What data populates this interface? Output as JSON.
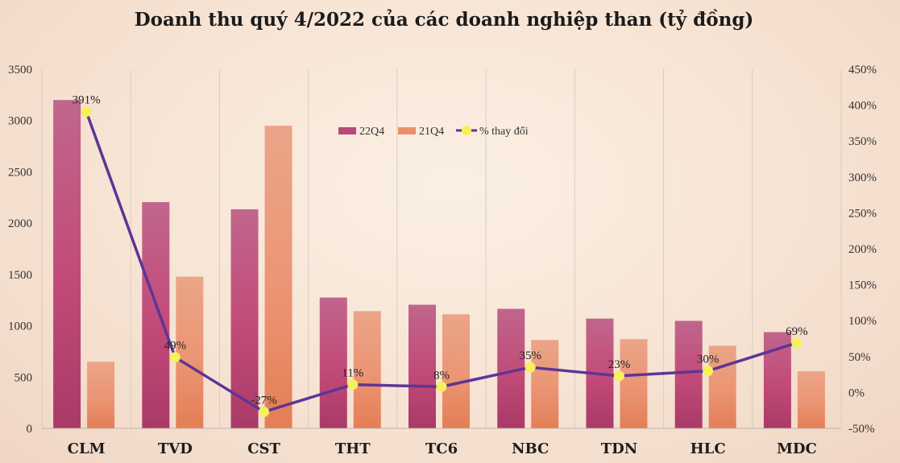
{
  "chart_data": {
    "type": "bar",
    "title": "Doanh thu quý 4/2022 của các doanh nghiệp than (tỷ đồng)",
    "categories": [
      "CLM",
      "TVD",
      "CST",
      "THT",
      "TC6",
      "NBC",
      "TDN",
      "HLC",
      "MDC"
    ],
    "series": [
      {
        "name": "22Q4",
        "type": "bar",
        "axis": "left",
        "color": "#b84a78",
        "values": [
          3200,
          2205,
          2135,
          1275,
          1205,
          1165,
          1070,
          1048,
          938
        ]
      },
      {
        "name": "21Q4",
        "type": "bar",
        "axis": "left",
        "color": "#ec8e6a",
        "values": [
          650,
          1478,
          2950,
          1143,
          1112,
          862,
          870,
          805,
          556
        ]
      },
      {
        "name": "% thay đổi",
        "type": "line",
        "axis": "right",
        "color": "#5e3596",
        "marker_color": "#f6f05a",
        "values": [
          391,
          49,
          -27,
          11,
          8,
          35,
          23,
          30,
          69
        ]
      }
    ],
    "data_labels": [
      "391%",
      "49%",
      "-27%",
      "11%",
      "8%",
      "35%",
      "23%",
      "30%",
      "69%"
    ],
    "y_left": {
      "min": 0,
      "max": 3500,
      "step": 500,
      "ticks": [
        "0",
        "500",
        "1000",
        "1500",
        "2000",
        "2500",
        "3000",
        "3500"
      ]
    },
    "y_right": {
      "min": -50,
      "max": 450,
      "step": 50,
      "ticks": [
        "-50%",
        "0%",
        "50%",
        "100%",
        "150%",
        "200%",
        "250%",
        "300%",
        "350%",
        "400%",
        "450%"
      ]
    },
    "grid": "vertical",
    "legend_position": "top-center"
  }
}
